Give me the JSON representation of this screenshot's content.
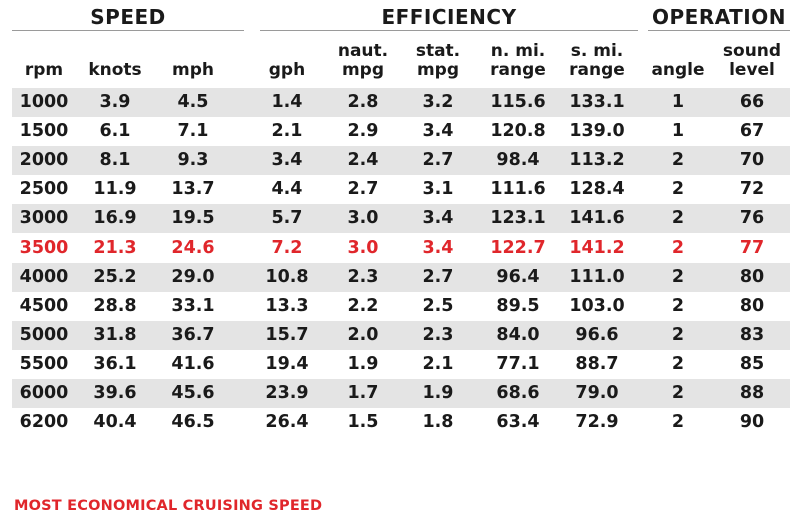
{
  "table": {
    "groups": [
      {
        "key": "speed",
        "label": "SPEED"
      },
      {
        "key": "eff",
        "label": "EFFICIENCY"
      },
      {
        "key": "op",
        "label": "OPERATION"
      }
    ],
    "columns": [
      {
        "line1": "",
        "line2": "rpm"
      },
      {
        "line1": "",
        "line2": "knots"
      },
      {
        "line1": "",
        "line2": "mph"
      },
      {
        "line1": "",
        "line2": "gph"
      },
      {
        "line1": "naut.",
        "line2": "mpg"
      },
      {
        "line1": "stat.",
        "line2": "mpg"
      },
      {
        "line1": "n. mi.",
        "line2": "range"
      },
      {
        "line1": "s. mi.",
        "line2": "range"
      },
      {
        "line1": "",
        "line2": "angle"
      },
      {
        "line1": "sound",
        "line2": "level"
      }
    ],
    "rows": [
      [
        "1000",
        "3.9",
        "4.5",
        "1.4",
        "2.8",
        "3.2",
        "115.6",
        "133.1",
        "1",
        "66"
      ],
      [
        "1500",
        "6.1",
        "7.1",
        "2.1",
        "2.9",
        "3.4",
        "120.8",
        "139.0",
        "1",
        "67"
      ],
      [
        "2000",
        "8.1",
        "9.3",
        "3.4",
        "2.4",
        "2.7",
        "98.4",
        "113.2",
        "2",
        "70"
      ],
      [
        "2500",
        "11.9",
        "13.7",
        "4.4",
        "2.7",
        "3.1",
        "111.6",
        "128.4",
        "2",
        "72"
      ],
      [
        "3000",
        "16.9",
        "19.5",
        "5.7",
        "3.0",
        "3.4",
        "123.1",
        "141.6",
        "2",
        "76"
      ],
      [
        "3500",
        "21.3",
        "24.6",
        "7.2",
        "3.0",
        "3.4",
        "122.7",
        "141.2",
        "2",
        "77"
      ],
      [
        "4000",
        "25.2",
        "29.0",
        "10.8",
        "2.3",
        "2.7",
        "96.4",
        "111.0",
        "2",
        "80"
      ],
      [
        "4500",
        "28.8",
        "33.1",
        "13.3",
        "2.2",
        "2.5",
        "89.5",
        "103.0",
        "2",
        "80"
      ],
      [
        "5000",
        "31.8",
        "36.7",
        "15.7",
        "2.0",
        "2.3",
        "84.0",
        "96.6",
        "2",
        "83"
      ],
      [
        "5500",
        "36.1",
        "41.6",
        "19.4",
        "1.9",
        "2.1",
        "77.1",
        "88.7",
        "2",
        "85"
      ],
      [
        "6000",
        "39.6",
        "45.6",
        "23.9",
        "1.7",
        "1.9",
        "68.6",
        "79.0",
        "2",
        "88"
      ],
      [
        "6200",
        "40.4",
        "46.5",
        "26.4",
        "1.5",
        "1.8",
        "63.4",
        "72.9",
        "2",
        "90"
      ]
    ],
    "highlight_row_index": 5,
    "highlight_color": "#e0262b",
    "stripe_color": "#e4e4e4",
    "footnote": "MOST ECONOMICAL CRUISING SPEED"
  },
  "chart_data": {
    "type": "table",
    "columns": [
      "rpm",
      "knots",
      "mph",
      "gph",
      "naut. mpg",
      "stat. mpg",
      "n. mi. range",
      "s. mi. range",
      "angle",
      "sound level"
    ],
    "rows": [
      [
        1000,
        3.9,
        4.5,
        1.4,
        2.8,
        3.2,
        115.6,
        133.1,
        1,
        66
      ],
      [
        1500,
        6.1,
        7.1,
        2.1,
        2.9,
        3.4,
        120.8,
        139.0,
        1,
        67
      ],
      [
        2000,
        8.1,
        9.3,
        3.4,
        2.4,
        2.7,
        98.4,
        113.2,
        2,
        70
      ],
      [
        2500,
        11.9,
        13.7,
        4.4,
        2.7,
        3.1,
        111.6,
        128.4,
        2,
        72
      ],
      [
        3000,
        16.9,
        19.5,
        5.7,
        3.0,
        3.4,
        123.1,
        141.6,
        2,
        76
      ],
      [
        3500,
        21.3,
        24.6,
        7.2,
        3.0,
        3.4,
        122.7,
        141.2,
        2,
        77
      ],
      [
        4000,
        25.2,
        29.0,
        10.8,
        2.3,
        2.7,
        96.4,
        111.0,
        2,
        80
      ],
      [
        4500,
        28.8,
        33.1,
        13.3,
        2.2,
        2.5,
        89.5,
        103.0,
        2,
        80
      ],
      [
        5000,
        31.8,
        36.7,
        15.7,
        2.0,
        2.3,
        84.0,
        96.6,
        2,
        83
      ],
      [
        5500,
        36.1,
        41.6,
        19.4,
        1.9,
        2.1,
        77.1,
        88.7,
        2,
        85
      ],
      [
        6000,
        39.6,
        45.6,
        23.9,
        1.7,
        1.9,
        68.6,
        79.0,
        2,
        88
      ],
      [
        6200,
        40.4,
        46.5,
        26.4,
        1.5,
        1.8,
        63.4,
        72.9,
        2,
        90
      ]
    ],
    "column_groups": [
      {
        "name": "SPEED",
        "columns": [
          "rpm",
          "knots",
          "mph"
        ]
      },
      {
        "name": "EFFICIENCY",
        "columns": [
          "gph",
          "naut. mpg",
          "stat. mpg",
          "n. mi. range",
          "s. mi. range"
        ]
      },
      {
        "name": "OPERATION",
        "columns": [
          "angle",
          "sound level"
        ]
      }
    ],
    "highlighted_row": 3500
  }
}
